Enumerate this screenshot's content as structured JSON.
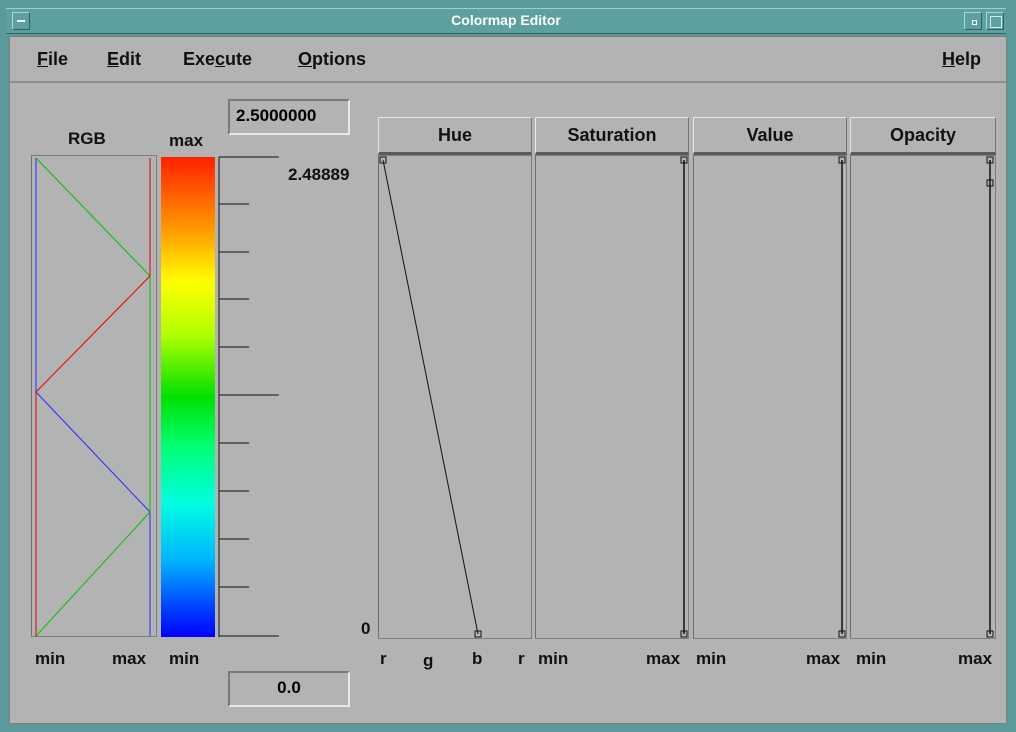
{
  "window": {
    "title": "Colormap Editor"
  },
  "menu": {
    "file": "File",
    "edit": "Edit",
    "execute": "Execute",
    "options": "Options",
    "help": "Help",
    "file_mn": "F",
    "file_rest": "ile",
    "edit_mn": "E",
    "edit_rest": "dit",
    "exec_pre": "Exe",
    "exec_mn": "c",
    "exec_rest": "ute",
    "opt_mn": "O",
    "opt_rest": "ptions",
    "help_mn": "H",
    "help_rest": "elp"
  },
  "rgb_panel": {
    "label": "RGB",
    "min_label": "min",
    "max_label": "max"
  },
  "colorbar": {
    "max_label": "max",
    "min_label": "min",
    "max_value": "2.5000000",
    "min_value": "0.0",
    "top_tick_label": "2.48889"
  },
  "hue_panel": {
    "header": "Hue",
    "zero_label": "0",
    "ticks": [
      "r",
      "g",
      "b",
      "r"
    ]
  },
  "saturation_panel": {
    "header": "Saturation",
    "min_label": "min",
    "max_label": "max"
  },
  "value_panel": {
    "header": "Value",
    "min_label": "min",
    "max_label": "max"
  },
  "opacity_panel": {
    "header": "Opacity",
    "min_label": "min",
    "max_label": "max"
  },
  "colors": {
    "red": "#e00000",
    "green": "#00c000",
    "blue": "#2030ff"
  }
}
